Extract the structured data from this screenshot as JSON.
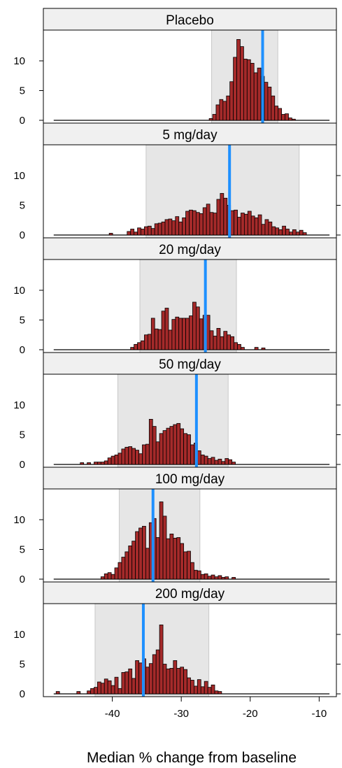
{
  "chart_data": {
    "type": "bar",
    "layout": "vertical-stacked-panels",
    "xlabel": "Median % change from baseline",
    "ylabel": "",
    "xlim": [
      -50,
      -7.5
    ],
    "ylim": [
      0,
      14
    ],
    "x_ticks": [
      -40,
      -30,
      -20,
      -10
    ],
    "y_ticks": [
      0,
      5,
      10
    ],
    "bin_width": 0.5,
    "colors": {
      "bar_fill": "#A52A2A",
      "bar_stroke": "#000000",
      "median_line": "#1E90FF",
      "interval_band": "#E6E6E6",
      "interval_stroke": "#C8C8C8",
      "strip_fill": "#F0F0F0"
    },
    "panels": [
      {
        "label": "Placebo",
        "median": -18.2,
        "interval": [
          -25.6,
          -16.0
        ],
        "bars": [
          [
            -25.7,
            0.3
          ],
          [
            -25.2,
            1.0
          ],
          [
            -24.7,
            2.6
          ],
          [
            -24.2,
            3.5
          ],
          [
            -23.7,
            3.2
          ],
          [
            -23.2,
            4.1
          ],
          [
            -22.7,
            6.5
          ],
          [
            -22.2,
            10.6
          ],
          [
            -21.7,
            13.6
          ],
          [
            -21.2,
            12.4
          ],
          [
            -20.7,
            10.3
          ],
          [
            -20.2,
            10.2
          ],
          [
            -19.7,
            9.6
          ],
          [
            -19.2,
            8.0
          ],
          [
            -18.7,
            8.8
          ],
          [
            -18.2,
            7.4
          ],
          [
            -17.7,
            6.4
          ],
          [
            -17.2,
            5.6
          ],
          [
            -16.7,
            4.1
          ],
          [
            -16.2,
            2.4
          ],
          [
            -15.7,
            2.0
          ],
          [
            -15.2,
            1.0
          ],
          [
            -14.7,
            1.1
          ],
          [
            -14.2,
            0.4
          ],
          [
            -13.7,
            0.2
          ]
        ]
      },
      {
        "label": "5 mg/day",
        "median": -23.0,
        "interval": [
          -35.1,
          -12.9
        ],
        "bars": [
          [
            -40.2,
            0.3
          ],
          [
            -37.6,
            0.6
          ],
          [
            -37.1,
            1.0
          ],
          [
            -36.6,
            0.5
          ],
          [
            -36.1,
            1.2
          ],
          [
            -35.6,
            1.0
          ],
          [
            -35.1,
            1.4
          ],
          [
            -34.6,
            1.5
          ],
          [
            -34.1,
            1.1
          ],
          [
            -33.6,
            1.9
          ],
          [
            -33.1,
            2.0
          ],
          [
            -32.6,
            2.2
          ],
          [
            -32.1,
            2.6
          ],
          [
            -31.6,
            2.7
          ],
          [
            -31.1,
            2.4
          ],
          [
            -30.6,
            3.1
          ],
          [
            -30.1,
            2.2
          ],
          [
            -29.6,
            2.9
          ],
          [
            -29.1,
            4.0
          ],
          [
            -28.6,
            4.2
          ],
          [
            -28.1,
            4.1
          ],
          [
            -27.6,
            3.8
          ],
          [
            -27.1,
            3.6
          ],
          [
            -26.6,
            4.6
          ],
          [
            -26.1,
            5.2
          ],
          [
            -25.6,
            3.8
          ],
          [
            -25.1,
            3.7
          ],
          [
            -24.6,
            6.0
          ],
          [
            -24.1,
            7.0
          ],
          [
            -23.6,
            6.2
          ],
          [
            -23.1,
            5.0
          ],
          [
            -22.6,
            4.1
          ],
          [
            -22.1,
            4.2
          ],
          [
            -21.6,
            3.0
          ],
          [
            -21.1,
            3.7
          ],
          [
            -20.6,
            3.5
          ],
          [
            -20.1,
            4.0
          ],
          [
            -19.6,
            3.2
          ],
          [
            -19.1,
            2.9
          ],
          [
            -18.6,
            3.4
          ],
          [
            -18.1,
            1.8
          ],
          [
            -17.6,
            2.6
          ],
          [
            -17.1,
            2.2
          ],
          [
            -16.6,
            1.4
          ],
          [
            -16.1,
            1.2
          ],
          [
            -15.6,
            0.9
          ],
          [
            -15.1,
            1.5
          ],
          [
            -14.6,
            1.0
          ],
          [
            -14.1,
            0.5
          ],
          [
            -13.6,
            0.9
          ],
          [
            -13.1,
            0.5
          ],
          [
            -12.6,
            0.8
          ],
          [
            -12.1,
            0.4
          ]
        ]
      },
      {
        "label": "20 mg/day",
        "median": -26.5,
        "interval": [
          -36.0,
          -22.0
        ],
        "bars": [
          [
            -37.1,
            0.4
          ],
          [
            -36.6,
            0.9
          ],
          [
            -36.1,
            1.2
          ],
          [
            -35.6,
            1.5
          ],
          [
            -35.1,
            2.5
          ],
          [
            -34.6,
            2.6
          ],
          [
            -34.1,
            5.3
          ],
          [
            -33.6,
            3.5
          ],
          [
            -33.1,
            3.4
          ],
          [
            -32.6,
            6.5
          ],
          [
            -32.1,
            7.0
          ],
          [
            -31.6,
            3.3
          ],
          [
            -31.1,
            5.1
          ],
          [
            -30.6,
            5.5
          ],
          [
            -30.1,
            5.3
          ],
          [
            -29.6,
            5.3
          ],
          [
            -29.1,
            5.3
          ],
          [
            -28.6,
            5.7
          ],
          [
            -28.1,
            8.0
          ],
          [
            -27.6,
            7.2
          ],
          [
            -27.1,
            5.2
          ],
          [
            -26.6,
            5.8
          ],
          [
            -26.1,
            5.8
          ],
          [
            -25.6,
            3.2
          ],
          [
            -25.1,
            2.3
          ],
          [
            -24.6,
            3.6
          ],
          [
            -24.1,
            2.2
          ],
          [
            -23.6,
            3.1
          ],
          [
            -23.1,
            2.5
          ],
          [
            -22.6,
            2.2
          ],
          [
            -22.1,
            1.2
          ],
          [
            -21.6,
            0.9
          ],
          [
            -21.1,
            0.4
          ],
          [
            -19.1,
            0.4
          ],
          [
            -18.1,
            0.3
          ]
        ]
      },
      {
        "label": "50 mg/day",
        "median": -27.8,
        "interval": [
          -39.2,
          -23.2
        ],
        "bars": [
          [
            -44.4,
            0.3
          ],
          [
            -43.4,
            0.3
          ],
          [
            -42.4,
            0.4
          ],
          [
            -41.9,
            0.4
          ],
          [
            -41.4,
            0.4
          ],
          [
            -40.9,
            0.6
          ],
          [
            -40.4,
            1.1
          ],
          [
            -39.9,
            1.4
          ],
          [
            -39.4,
            1.6
          ],
          [
            -38.9,
            1.9
          ],
          [
            -38.4,
            2.6
          ],
          [
            -37.9,
            2.9
          ],
          [
            -37.4,
            3.0
          ],
          [
            -36.9,
            2.7
          ],
          [
            -36.4,
            2.4
          ],
          [
            -35.9,
            1.8
          ],
          [
            -35.4,
            3.3
          ],
          [
            -34.9,
            3.4
          ],
          [
            -34.4,
            7.6
          ],
          [
            -33.9,
            6.4
          ],
          [
            -33.4,
            3.8
          ],
          [
            -32.9,
            5.2
          ],
          [
            -32.4,
            5.7
          ],
          [
            -31.9,
            6.1
          ],
          [
            -31.4,
            6.4
          ],
          [
            -30.9,
            6.7
          ],
          [
            -30.4,
            6.9
          ],
          [
            -29.9,
            6.0
          ],
          [
            -29.4,
            5.2
          ],
          [
            -28.9,
            5.0
          ],
          [
            -28.4,
            3.3
          ],
          [
            -27.9,
            3.6
          ],
          [
            -27.4,
            2.3
          ],
          [
            -26.9,
            1.6
          ],
          [
            -26.4,
            1.4
          ],
          [
            -25.9,
            1.0
          ],
          [
            -25.4,
            1.2
          ],
          [
            -24.9,
            0.7
          ],
          [
            -24.4,
            0.9
          ],
          [
            -23.9,
            0.5
          ],
          [
            -23.4,
            1.0
          ],
          [
            -22.9,
            0.8
          ],
          [
            -22.4,
            0.4
          ]
        ]
      },
      {
        "label": "100 mg/day",
        "median": -34.1,
        "interval": [
          -39.0,
          -27.3
        ],
        "bars": [
          [
            -41.4,
            0.4
          ],
          [
            -40.9,
            0.9
          ],
          [
            -40.4,
            1.1
          ],
          [
            -39.9,
            0.8
          ],
          [
            -39.4,
            1.9
          ],
          [
            -38.9,
            2.8
          ],
          [
            -38.4,
            3.7
          ],
          [
            -37.9,
            4.6
          ],
          [
            -37.4,
            5.6
          ],
          [
            -36.9,
            6.4
          ],
          [
            -36.4,
            8.0
          ],
          [
            -35.9,
            8.6
          ],
          [
            -35.4,
            8.9
          ],
          [
            -34.9,
            5.2
          ],
          [
            -34.4,
            9.5
          ],
          [
            -33.9,
            10.2
          ],
          [
            -33.4,
            7.0
          ],
          [
            -32.9,
            13.0
          ],
          [
            -32.4,
            10.6
          ],
          [
            -31.9,
            6.8
          ],
          [
            -31.4,
            7.6
          ],
          [
            -30.9,
            6.9
          ],
          [
            -30.4,
            7.0
          ],
          [
            -29.9,
            6.0
          ],
          [
            -29.4,
            4.6
          ],
          [
            -28.9,
            4.7
          ],
          [
            -28.4,
            2.8
          ],
          [
            -27.9,
            1.5
          ],
          [
            -27.4,
            1.4
          ],
          [
            -26.9,
            0.8
          ],
          [
            -26.4,
            0.9
          ],
          [
            -25.9,
            0.5
          ],
          [
            -25.4,
            0.7
          ],
          [
            -24.9,
            0.4
          ],
          [
            -24.4,
            0.6
          ],
          [
            -23.9,
            0.3
          ],
          [
            -23.4,
            0.4
          ],
          [
            -22.4,
            0.3
          ]
        ]
      },
      {
        "label": "200 mg/day",
        "median": -35.5,
        "interval": [
          -42.5,
          -26.0
        ],
        "bars": [
          [
            -47.9,
            0.4
          ],
          [
            -44.9,
            0.4
          ],
          [
            -43.4,
            0.5
          ],
          [
            -42.9,
            0.9
          ],
          [
            -42.4,
            1.1
          ],
          [
            -41.9,
            2.0
          ],
          [
            -41.4,
            1.8
          ],
          [
            -40.9,
            2.5
          ],
          [
            -40.4,
            2.2
          ],
          [
            -39.9,
            1.4
          ],
          [
            -39.4,
            2.8
          ],
          [
            -38.9,
            0.9
          ],
          [
            -38.4,
            3.6
          ],
          [
            -37.9,
            3.7
          ],
          [
            -37.4,
            4.2
          ],
          [
            -36.9,
            2.6
          ],
          [
            -36.4,
            5.6
          ],
          [
            -35.9,
            5.2
          ],
          [
            -35.4,
            5.9
          ],
          [
            -34.9,
            4.5
          ],
          [
            -34.4,
            5.1
          ],
          [
            -33.9,
            6.6
          ],
          [
            -33.4,
            7.4
          ],
          [
            -32.9,
            11.6
          ],
          [
            -32.4,
            5.0
          ],
          [
            -31.9,
            4.2
          ],
          [
            -31.4,
            4.3
          ],
          [
            -30.9,
            5.6
          ],
          [
            -30.4,
            4.3
          ],
          [
            -29.9,
            4.5
          ],
          [
            -29.4,
            4.1
          ],
          [
            -28.9,
            2.7
          ],
          [
            -28.4,
            2.3
          ],
          [
            -27.9,
            1.3
          ],
          [
            -27.4,
            2.4
          ],
          [
            -26.9,
            1.2
          ],
          [
            -26.4,
            2.1
          ],
          [
            -25.9,
            1.1
          ],
          [
            -25.4,
            1.5
          ],
          [
            -24.9,
            0.5
          ],
          [
            -24.4,
            0.4
          ]
        ]
      }
    ]
  }
}
